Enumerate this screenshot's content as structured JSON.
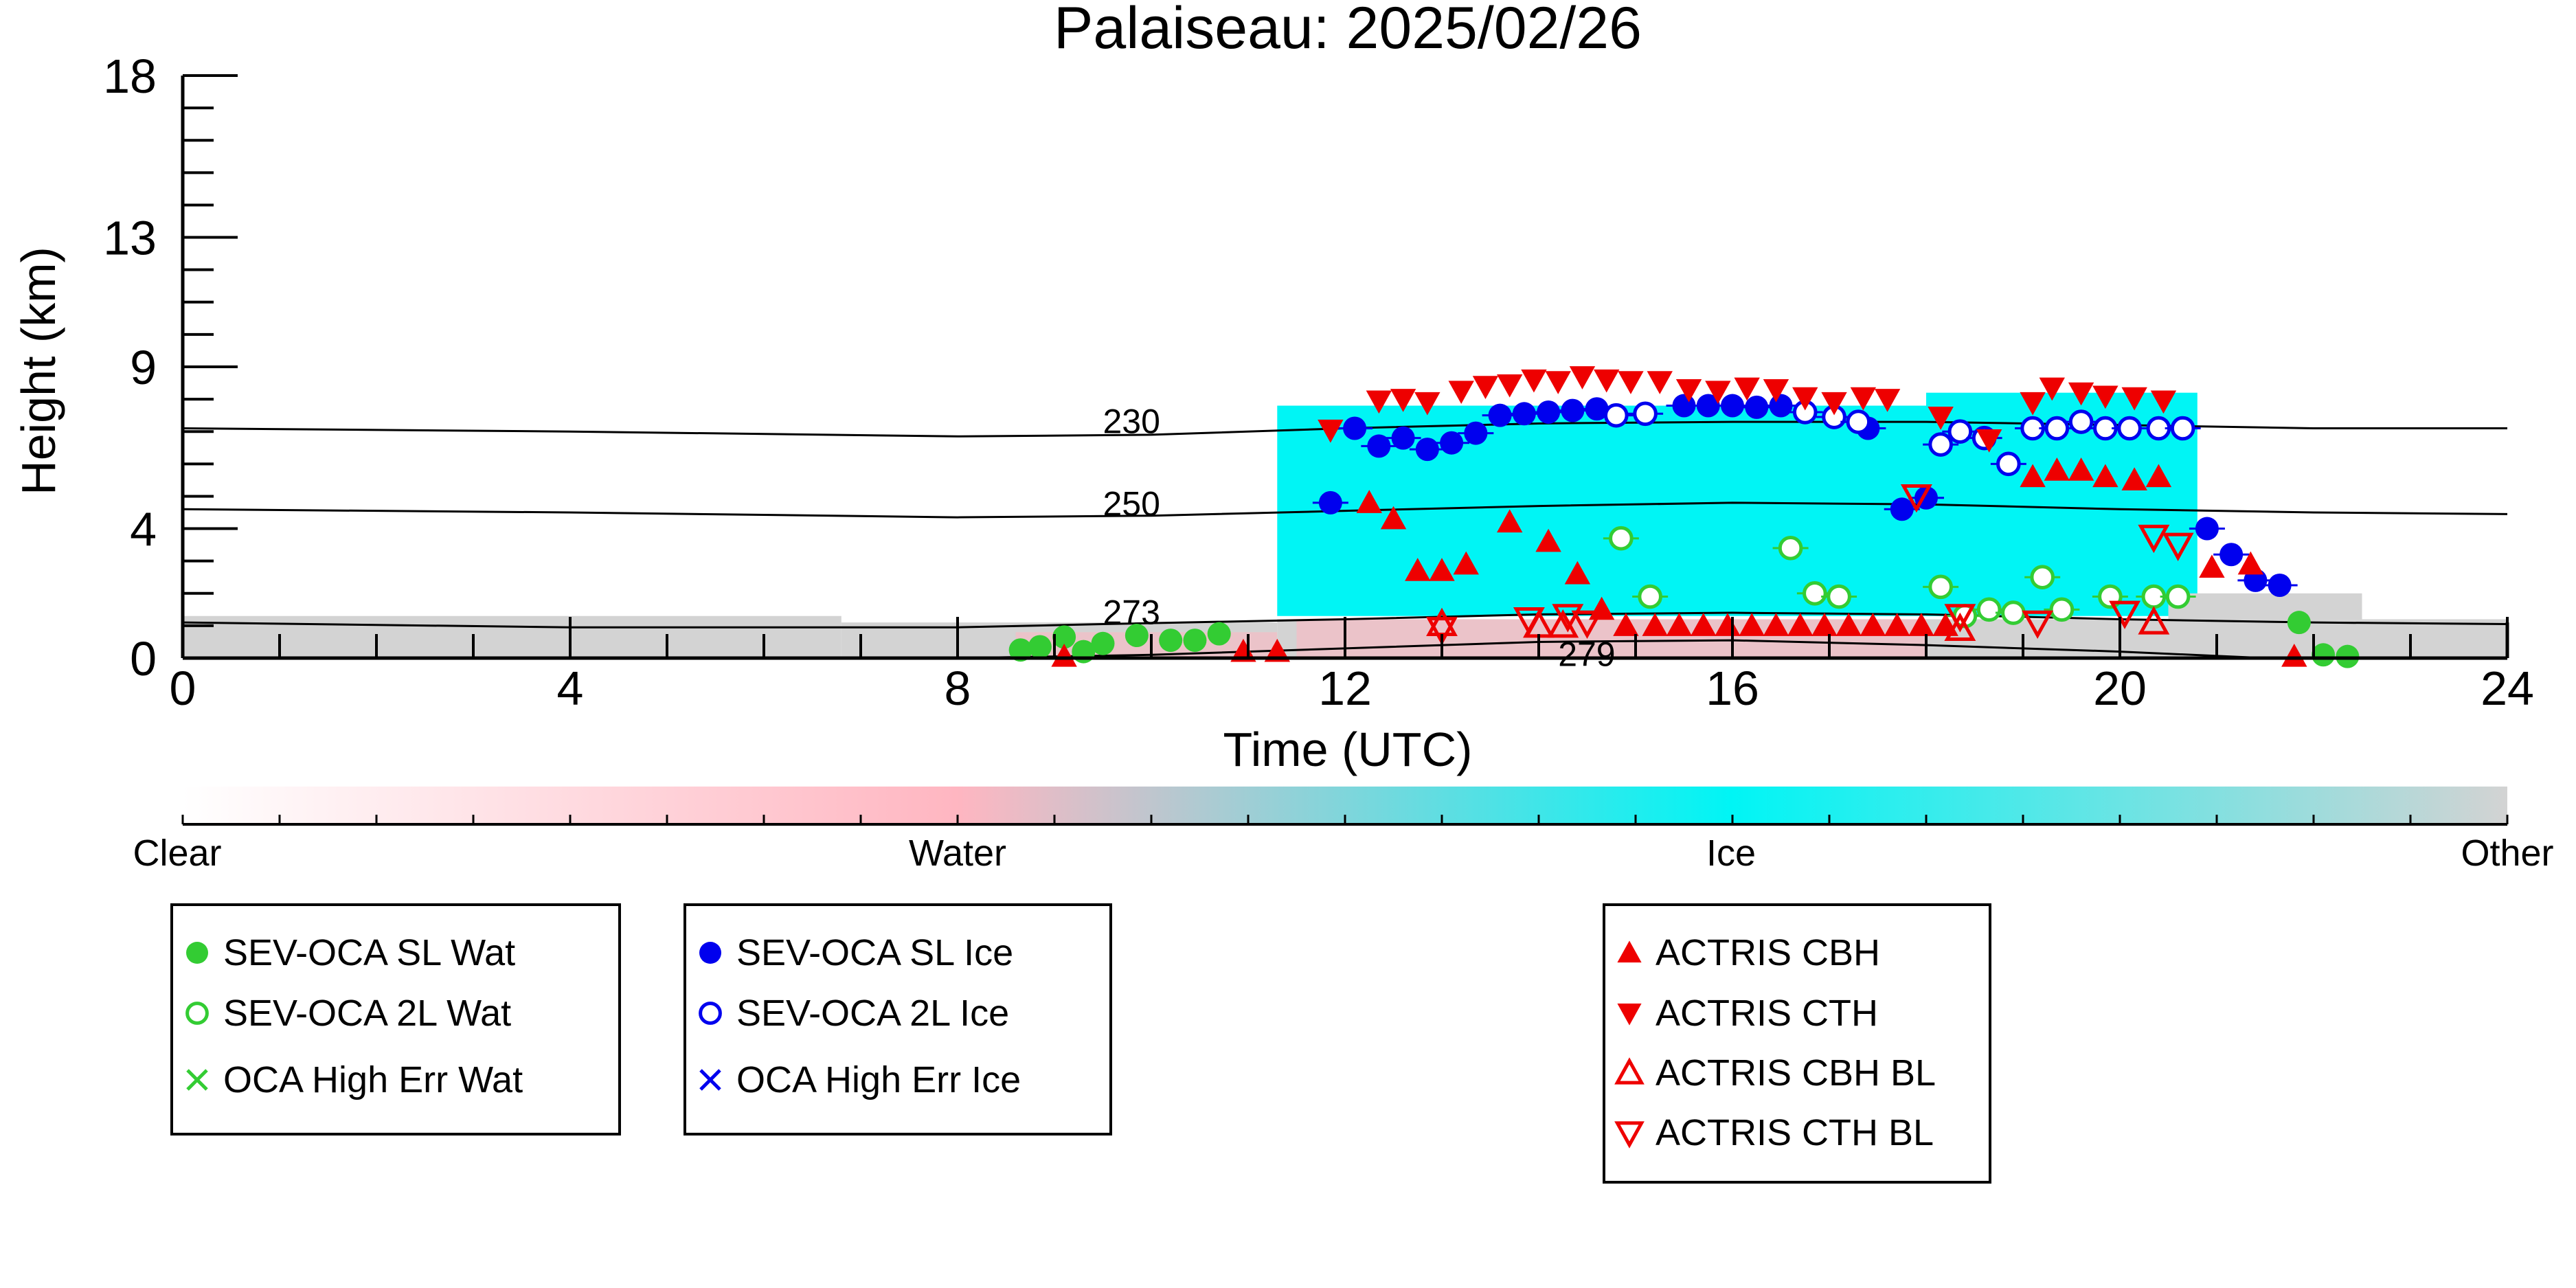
{
  "chart_data": {
    "type": "scatter",
    "title": "Palaiseau: 2025/02/26",
    "xlabel": "Time (UTC)",
    "ylabel": "Height (km)",
    "xlim": [
      0,
      24
    ],
    "ylim": [
      0,
      18
    ],
    "x_ticks": [
      0,
      4,
      8,
      12,
      16,
      20,
      24
    ],
    "y_ticks": [
      0,
      4,
      9,
      13,
      18
    ],
    "grid": false,
    "colorbar": {
      "labels": [
        "Clear",
        "Water",
        "Ice",
        "Other"
      ],
      "colors": [
        "#ffffff",
        "#ffb6c1",
        "#00f5f5",
        "#d3d3d3"
      ]
    },
    "isotherms": [
      {
        "label": "230",
        "x": [
          0,
          4,
          8,
          10,
          12,
          14,
          16,
          18,
          20,
          22,
          24
        ],
        "y": [
          7.1,
          7.0,
          6.85,
          6.9,
          7.1,
          7.25,
          7.3,
          7.3,
          7.2,
          7.1,
          7.1
        ]
      },
      {
        "label": "250",
        "x": [
          0,
          4,
          8,
          10,
          12,
          14,
          16,
          18,
          20,
          22,
          24
        ],
        "y": [
          4.6,
          4.5,
          4.35,
          4.4,
          4.55,
          4.7,
          4.8,
          4.75,
          4.6,
          4.5,
          4.45
        ]
      },
      {
        "label": "273",
        "x": [
          0,
          4,
          8,
          9.5,
          12,
          14,
          16,
          18,
          20,
          22,
          24
        ],
        "y": [
          1.1,
          0.95,
          0.95,
          1.05,
          1.2,
          1.35,
          1.4,
          1.35,
          1.2,
          1.1,
          1.05
        ]
      },
      {
        "label": "279",
        "x": [
          8,
          10,
          12,
          14,
          16,
          18,
          20,
          21.5
        ],
        "y": [
          0.0,
          0.1,
          0.3,
          0.5,
          0.55,
          0.4,
          0.2,
          0.0
        ]
      }
    ],
    "target_regions": [
      {
        "class": "Other",
        "x0": 0,
        "x1": 6.8,
        "y0": 0,
        "y1": 1.3
      },
      {
        "class": "Other",
        "x0": 6.8,
        "x1": 11.3,
        "y0": 0,
        "y1": 1.1
      },
      {
        "class": "Water",
        "x0": 8.6,
        "x1": 11.3,
        "y0": 0,
        "y1": 0.8
      },
      {
        "class": "Other",
        "x0": 11.3,
        "x1": 24,
        "y0": 0,
        "y1": 1.2
      },
      {
        "class": "Water",
        "x0": 11.5,
        "x1": 18,
        "y0": 0,
        "y1": 1.2
      },
      {
        "class": "Ice",
        "x0": 11.3,
        "x1": 18.5,
        "y0": 1.3,
        "y1": 7.8
      },
      {
        "class": "Ice",
        "x0": 18.0,
        "x1": 20.8,
        "y0": 1.3,
        "y1": 8.2
      },
      {
        "class": "Other",
        "x0": 20.5,
        "x1": 22.5,
        "y0": 1.2,
        "y1": 2.0
      }
    ],
    "series": [
      {
        "name": "SEV-OCA SL Wat",
        "color": "#33cc33",
        "marker": "filled-circle",
        "points": [
          [
            8.65,
            0.25
          ],
          [
            8.85,
            0.35
          ],
          [
            9.1,
            0.65
          ],
          [
            9.3,
            0.2
          ],
          [
            9.5,
            0.45
          ],
          [
            9.85,
            0.7
          ],
          [
            10.2,
            0.55
          ],
          [
            10.45,
            0.55
          ],
          [
            10.7,
            0.75
          ],
          [
            21.85,
            1.1
          ],
          [
            22.1,
            0.1
          ],
          [
            22.35,
            0.05
          ]
        ]
      },
      {
        "name": "SEV-OCA 2L Wat",
        "color": "#33cc33",
        "marker": "open-circle",
        "points": [
          [
            14.85,
            3.7
          ],
          [
            15.15,
            1.9
          ],
          [
            16.6,
            3.4
          ],
          [
            16.85,
            2.0
          ],
          [
            17.1,
            1.9
          ],
          [
            18.15,
            2.2
          ],
          [
            18.4,
            1.3
          ],
          [
            18.65,
            1.5
          ],
          [
            18.9,
            1.4
          ],
          [
            19.2,
            2.5
          ],
          [
            19.4,
            1.5
          ],
          [
            19.9,
            1.9
          ],
          [
            20.35,
            1.9
          ],
          [
            20.6,
            1.9
          ]
        ]
      },
      {
        "name": "OCA High Err Wat",
        "color": "#33cc33",
        "marker": "x",
        "points": []
      },
      {
        "name": "SEV-OCA SL Ice",
        "color": "#0000ee",
        "marker": "filled-circle",
        "points": [
          [
            11.85,
            4.8
          ],
          [
            12.1,
            7.1
          ],
          [
            12.35,
            6.55
          ],
          [
            12.6,
            6.8
          ],
          [
            12.85,
            6.45
          ],
          [
            13.1,
            6.65
          ],
          [
            13.35,
            6.95
          ],
          [
            13.6,
            7.5
          ],
          [
            13.85,
            7.55
          ],
          [
            14.1,
            7.6
          ],
          [
            14.35,
            7.65
          ],
          [
            14.6,
            7.7
          ],
          [
            15.5,
            7.8
          ],
          [
            15.75,
            7.8
          ],
          [
            16.0,
            7.8
          ],
          [
            16.25,
            7.75
          ],
          [
            16.5,
            7.8
          ],
          [
            17.4,
            7.1
          ],
          [
            17.75,
            4.6
          ],
          [
            18.0,
            4.95
          ],
          [
            20.9,
            4.0
          ],
          [
            21.15,
            3.2
          ],
          [
            21.4,
            2.4
          ],
          [
            21.65,
            2.25
          ]
        ]
      },
      {
        "name": "SEV-OCA 2L Ice",
        "color": "#0000ee",
        "marker": "open-circle",
        "points": [
          [
            14.8,
            7.5
          ],
          [
            15.1,
            7.55
          ],
          [
            16.75,
            7.6
          ],
          [
            17.05,
            7.45
          ],
          [
            17.3,
            7.3
          ],
          [
            18.15,
            6.6
          ],
          [
            18.35,
            7.0
          ],
          [
            18.6,
            6.8
          ],
          [
            18.85,
            6.0
          ],
          [
            19.1,
            7.1
          ],
          [
            19.35,
            7.1
          ],
          [
            19.6,
            7.3
          ],
          [
            19.85,
            7.1
          ],
          [
            20.1,
            7.1
          ],
          [
            20.4,
            7.1
          ],
          [
            20.65,
            7.1
          ]
        ]
      },
      {
        "name": "OCA High Err Ice",
        "color": "#0000ee",
        "marker": "x",
        "points": []
      },
      {
        "name": "ACTRIS CBH",
        "color": "#ee0000",
        "marker": "tri-up-filled",
        "points": [
          [
            9.1,
            0.05
          ],
          [
            10.95,
            0.2
          ],
          [
            11.3,
            0.2
          ],
          [
            12.25,
            4.8
          ],
          [
            12.5,
            4.3
          ],
          [
            12.75,
            2.7
          ],
          [
            13.0,
            2.7
          ],
          [
            13.25,
            2.9
          ],
          [
            13.7,
            4.2
          ],
          [
            14.1,
            3.6
          ],
          [
            14.4,
            2.6
          ],
          [
            14.65,
            1.5
          ],
          [
            14.9,
            1.0
          ],
          [
            15.2,
            1.0
          ],
          [
            15.45,
            1.0
          ],
          [
            15.7,
            1.0
          ],
          [
            15.95,
            1.0
          ],
          [
            16.2,
            1.0
          ],
          [
            16.45,
            1.0
          ],
          [
            16.7,
            1.0
          ],
          [
            16.95,
            1.0
          ],
          [
            17.2,
            1.0
          ],
          [
            17.45,
            1.0
          ],
          [
            17.7,
            1.0
          ],
          [
            17.95,
            1.0
          ],
          [
            18.2,
            1.0
          ],
          [
            19.1,
            5.6
          ],
          [
            19.35,
            5.8
          ],
          [
            19.6,
            5.8
          ],
          [
            19.85,
            5.6
          ],
          [
            20.15,
            5.5
          ],
          [
            20.4,
            5.6
          ],
          [
            20.95,
            2.8
          ],
          [
            21.35,
            2.9
          ],
          [
            21.8,
            0.05
          ]
        ]
      },
      {
        "name": "ACTRIS CTH",
        "color": "#ee0000",
        "marker": "tri-down-filled",
        "points": [
          [
            11.85,
            7.05
          ],
          [
            12.35,
            7.95
          ],
          [
            12.6,
            8.0
          ],
          [
            12.85,
            7.9
          ],
          [
            13.2,
            8.25
          ],
          [
            13.45,
            8.4
          ],
          [
            13.7,
            8.45
          ],
          [
            13.95,
            8.6
          ],
          [
            14.2,
            8.55
          ],
          [
            14.45,
            8.7
          ],
          [
            14.7,
            8.6
          ],
          [
            14.95,
            8.55
          ],
          [
            15.25,
            8.55
          ],
          [
            15.55,
            8.3
          ],
          [
            15.85,
            8.25
          ],
          [
            16.15,
            8.35
          ],
          [
            16.45,
            8.3
          ],
          [
            16.75,
            8.05
          ],
          [
            17.05,
            7.9
          ],
          [
            17.35,
            8.05
          ],
          [
            17.6,
            8.0
          ],
          [
            18.15,
            7.45
          ],
          [
            18.65,
            6.75
          ],
          [
            19.1,
            7.9
          ],
          [
            19.3,
            8.35
          ],
          [
            19.6,
            8.2
          ],
          [
            19.85,
            8.1
          ],
          [
            20.15,
            8.05
          ],
          [
            20.45,
            7.95
          ]
        ]
      },
      {
        "name": "ACTRIS CBH BL",
        "color": "#ee0000",
        "marker": "tri-up-open",
        "points": [
          [
            13.0,
            1.05
          ],
          [
            14.0,
            1.0
          ],
          [
            14.25,
            1.0
          ],
          [
            18.35,
            0.9
          ],
          [
            20.35,
            1.1
          ]
        ]
      },
      {
        "name": "ACTRIS CTH BL",
        "color": "#ee0000",
        "marker": "tri-down-open",
        "points": [
          [
            13.0,
            0.9
          ],
          [
            13.9,
            1.2
          ],
          [
            14.3,
            1.3
          ],
          [
            14.5,
            1.1
          ],
          [
            17.9,
            5.0
          ],
          [
            18.35,
            1.3
          ],
          [
            19.15,
            1.1
          ],
          [
            20.05,
            1.4
          ],
          [
            20.35,
            3.75
          ],
          [
            20.6,
            3.5
          ]
        ]
      }
    ]
  }
}
